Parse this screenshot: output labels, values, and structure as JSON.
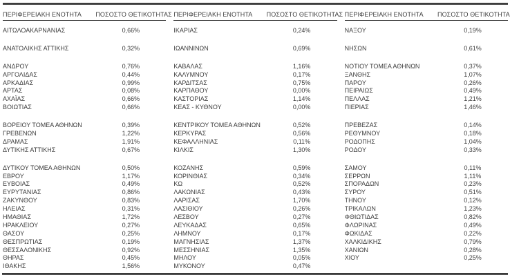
{
  "meta": {
    "description": "Positivity rate table by Greek regional unit, three column pairs",
    "colors": {
      "text": "#3d3d3d",
      "thick_border": "#3a3a3a",
      "header_underline": "#2b2b2b",
      "background": "#ffffff"
    }
  },
  "table": {
    "header": {
      "region": "ΠΕΡΙΦΕΡΕΙΑΚΗ ΕΝΟΤΗΤΑ",
      "positivity": "ΠΟΣΟΣΤΟ ΘΕΤΙΚΟΤΗΤΑΣ"
    },
    "columns": [
      {
        "groups": [
          [
            {
              "region": "ΑΙΤΩΛΟΑΚΑΡΝΑΝΙΑΣ",
              "value": "0,66%"
            }
          ],
          [
            {
              "region": "ΑΝΑΤΟΛΙΚΗΣ ΑΤΤΙΚΗΣ",
              "value": "0,32%"
            }
          ],
          [
            {
              "region": "ΑΝΔΡΟΥ",
              "value": "0,76%"
            },
            {
              "region": "ΑΡΓΟΛΙΔΑΣ",
              "value": "0,44%"
            },
            {
              "region": "ΑΡΚΑΔΙΑΣ",
              "value": "0,99%"
            },
            {
              "region": "ΑΡΤΑΣ",
              "value": "0,08%"
            },
            {
              "region": "ΑΧΑΪΑΣ",
              "value": "0,66%"
            },
            {
              "region": "ΒΟΙΩΤΙΑΣ",
              "value": "0,66%"
            }
          ],
          [
            {
              "region": "ΒΟΡΕΙΟΥ ΤΟΜΕΑ ΑΘΗΝΩΝ",
              "value": "0,39%"
            },
            {
              "region": "ΓΡΕΒΕΝΩΝ",
              "value": "1,22%"
            },
            {
              "region": "ΔΡΑΜΑΣ",
              "value": "1,91%"
            },
            {
              "region": "ΔΥΤΙΚΗΣ ΑΤΤΙΚΗΣ",
              "value": "0,67%"
            }
          ],
          [
            {
              "region": "ΔΥΤΙΚΟΥ ΤΟΜΕΑ ΑΘΗΝΩΝ",
              "value": "0,50%"
            },
            {
              "region": "ΕΒΡΟΥ",
              "value": "1,17%"
            },
            {
              "region": "ΕΥΒΟΙΑΣ",
              "value": "0,49%"
            },
            {
              "region": "ΕΥΡΥΤΑΝΙΑΣ",
              "value": "0,86%"
            },
            {
              "region": "ΖΑΚΥΝΘΟΥ",
              "value": "0,83%"
            },
            {
              "region": "ΗΛΕΙΑΣ",
              "value": "0,31%"
            },
            {
              "region": "ΗΜΑΘΙΑΣ",
              "value": "1,72%"
            },
            {
              "region": "ΗΡΑΚΛΕΙΟΥ",
              "value": "0,27%"
            },
            {
              "region": "ΘΑΣΟΥ",
              "value": "0,25%"
            },
            {
              "region": "ΘΕΣΠΡΩΤΙΑΣ",
              "value": "0,19%"
            },
            {
              "region": "ΘΕΣΣΑΛΟΝΙΚΗΣ",
              "value": "0,92%"
            },
            {
              "region": "ΘΗΡΑΣ",
              "value": "0,45%"
            },
            {
              "region": "ΙΘΑΚΗΣ",
              "value": "1,56%"
            }
          ]
        ]
      },
      {
        "groups": [
          [
            {
              "region": "ΙΚΑΡΙΑΣ",
              "value": "0,24%"
            }
          ],
          [
            {
              "region": "ΙΩΑΝΝΙΝΩΝ",
              "value": "0,69%"
            }
          ],
          [
            {
              "region": "ΚΑΒΑΛΑΣ",
              "value": "1,16%"
            },
            {
              "region": "ΚΑΛΥΜΝΟΥ",
              "value": "0,17%"
            },
            {
              "region": "ΚΑΡΔΙΤΣΑΣ",
              "value": "0,75%"
            },
            {
              "region": "ΚΑΡΠΑΘΟΥ",
              "value": "0,00%"
            },
            {
              "region": "ΚΑΣΤΟΡΙΑΣ",
              "value": "1,14%"
            },
            {
              "region": "ΚΕΑΣ - ΚΥΘΝΟΥ",
              "value": "0,00%"
            }
          ],
          [
            {
              "region": "ΚΕΝΤΡΙΚΟΥ ΤΟΜΕΑ ΑΘΗΝΩΝ",
              "value": "0,52%"
            },
            {
              "region": "ΚΕΡΚΥΡΑΣ",
              "value": "0,56%"
            },
            {
              "region": "ΚΕΦΑΛΛΗΝΙΑΣ",
              "value": "0,11%"
            },
            {
              "region": "ΚΙΛΚΙΣ",
              "value": "1,30%"
            }
          ],
          [
            {
              "region": "ΚΟΖΑΝΗΣ",
              "value": "0,59%"
            },
            {
              "region": "ΚΟΡΙΝΘΙΑΣ",
              "value": "0,34%"
            },
            {
              "region": "ΚΩ",
              "value": "0,52%"
            },
            {
              "region": "ΛΑΚΩΝΙΑΣ",
              "value": "0,43%"
            },
            {
              "region": "ΛΑΡΙΣΑΣ",
              "value": "1,70%"
            },
            {
              "region": "ΛΑΣΙΘΙΟΥ",
              "value": "0,26%"
            },
            {
              "region": "ΛΕΣΒΟΥ",
              "value": "0,27%"
            },
            {
              "region": "ΛΕΥΚΑΔΑΣ",
              "value": "0,65%"
            },
            {
              "region": "ΛΗΜΝΟΥ",
              "value": "0,17%"
            },
            {
              "region": "ΜΑΓΝΗΣΙΑΣ",
              "value": "1,37%"
            },
            {
              "region": "ΜΕΣΣΗΝΙΑΣ",
              "value": "1,35%"
            },
            {
              "region": "ΜΗΛΟΥ",
              "value": "0,05%"
            },
            {
              "region": "ΜΥΚΟΝΟΥ",
              "value": "0,47%"
            }
          ]
        ]
      },
      {
        "groups": [
          [
            {
              "region": "ΝΑΞΟΥ",
              "value": "0,19%"
            }
          ],
          [
            {
              "region": "ΝΗΣΩΝ",
              "value": "0,61%"
            }
          ],
          [
            {
              "region": "ΝΟΤΙΟΥ ΤΟΜΕΑ ΑΘΗΝΩΝ",
              "value": "0,37%"
            },
            {
              "region": "ΞΑΝΘΗΣ",
              "value": "1,07%"
            },
            {
              "region": "ΠΑΡΟΥ",
              "value": "0,26%"
            },
            {
              "region": "ΠΕΙΡΑΙΩΣ",
              "value": "0,49%"
            },
            {
              "region": "ΠΕΛΛΑΣ",
              "value": "1,21%"
            },
            {
              "region": "ΠΙΕΡΙΑΣ",
              "value": "1,46%"
            }
          ],
          [
            {
              "region": "ΠΡΕΒΕΖΑΣ",
              "value": "0,14%"
            },
            {
              "region": "ΡΕΘΥΜΝΟΥ",
              "value": "0,18%"
            },
            {
              "region": "ΡΟΔΟΠΗΣ",
              "value": "1,04%"
            },
            {
              "region": "ΡΟΔΟΥ",
              "value": "0,33%"
            }
          ],
          [
            {
              "region": "ΣΑΜΟΥ",
              "value": "0,11%"
            },
            {
              "region": "ΣΕΡΡΩΝ",
              "value": "1,11%"
            },
            {
              "region": "ΣΠΟΡΑΔΩΝ",
              "value": "0,23%"
            },
            {
              "region": "ΣΥΡΟΥ",
              "value": "0,51%"
            },
            {
              "region": "ΤΗΝΟΥ",
              "value": "0,12%"
            },
            {
              "region": "ΤΡΙΚΑΛΩΝ",
              "value": "1,23%"
            },
            {
              "region": "ΦΘΙΩΤΙΔΑΣ",
              "value": "0,82%"
            },
            {
              "region": "ΦΛΩΡΙΝΑΣ",
              "value": "0,49%"
            },
            {
              "region": "ΦΩΚΙΔΑΣ",
              "value": "0,22%"
            },
            {
              "region": "ΧΑΛΚΙΔΙΚΗΣ",
              "value": "0,79%"
            },
            {
              "region": "ΧΑΝΙΩΝ",
              "value": "0,28%"
            },
            {
              "region": "ΧΙΟΥ",
              "value": "0,25%"
            }
          ]
        ]
      }
    ]
  }
}
